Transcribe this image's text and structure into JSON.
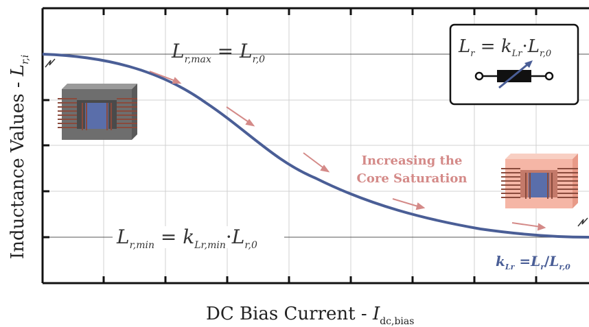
{
  "axes": {
    "xlabel_main": "DC Bias Current - ",
    "xlabel_sym": "I",
    "xlabel_sub": "dc,bias",
    "ylabel_main": "Inductance Values - ",
    "ylabel_sym": "L",
    "ylabel_sub": "r,i"
  },
  "labels": {
    "lmax_lhs": "L",
    "lmax_lhs_sub": "r,max",
    "lmax_eq": " = ",
    "lmax_rhs": "L",
    "lmax_rhs_sub": "r,0",
    "lmin_lhs": "L",
    "lmin_lhs_sub": "r,min",
    "lmin_eq": " = ",
    "lmin_k": "k",
    "lmin_k_sub": "Lr,min",
    "lmin_dot": "·",
    "lmin_rhs": "L",
    "lmin_rhs_sub": "r,0",
    "saturation_line1": "Increasing the",
    "saturation_line2": "Core Saturation",
    "kdef_k": "k",
    "kdef_k_sub": "Lr",
    "kdef_eq": " =",
    "kdef_L": "L",
    "kdef_L_sub": "r",
    "kdef_slash": "/",
    "kdef_L0": "L",
    "kdef_L0_sub": "r,0"
  },
  "legend_box": {
    "lhs": "L",
    "lhs_sub": "r",
    "eq": " = ",
    "k": "k",
    "k_sub": "Lr",
    "dot": "·",
    "rhs": "L",
    "rhs_sub": "r,0"
  },
  "colors": {
    "curve": "#4a5e96",
    "arrow": "#d48a88",
    "saturation_text": "#d48a88",
    "core_gray": "#6e6e6e",
    "core_salmon": "#f5b6a6",
    "winding": "#8a4a3c",
    "winding_center": "#5a6eaa"
  }
}
